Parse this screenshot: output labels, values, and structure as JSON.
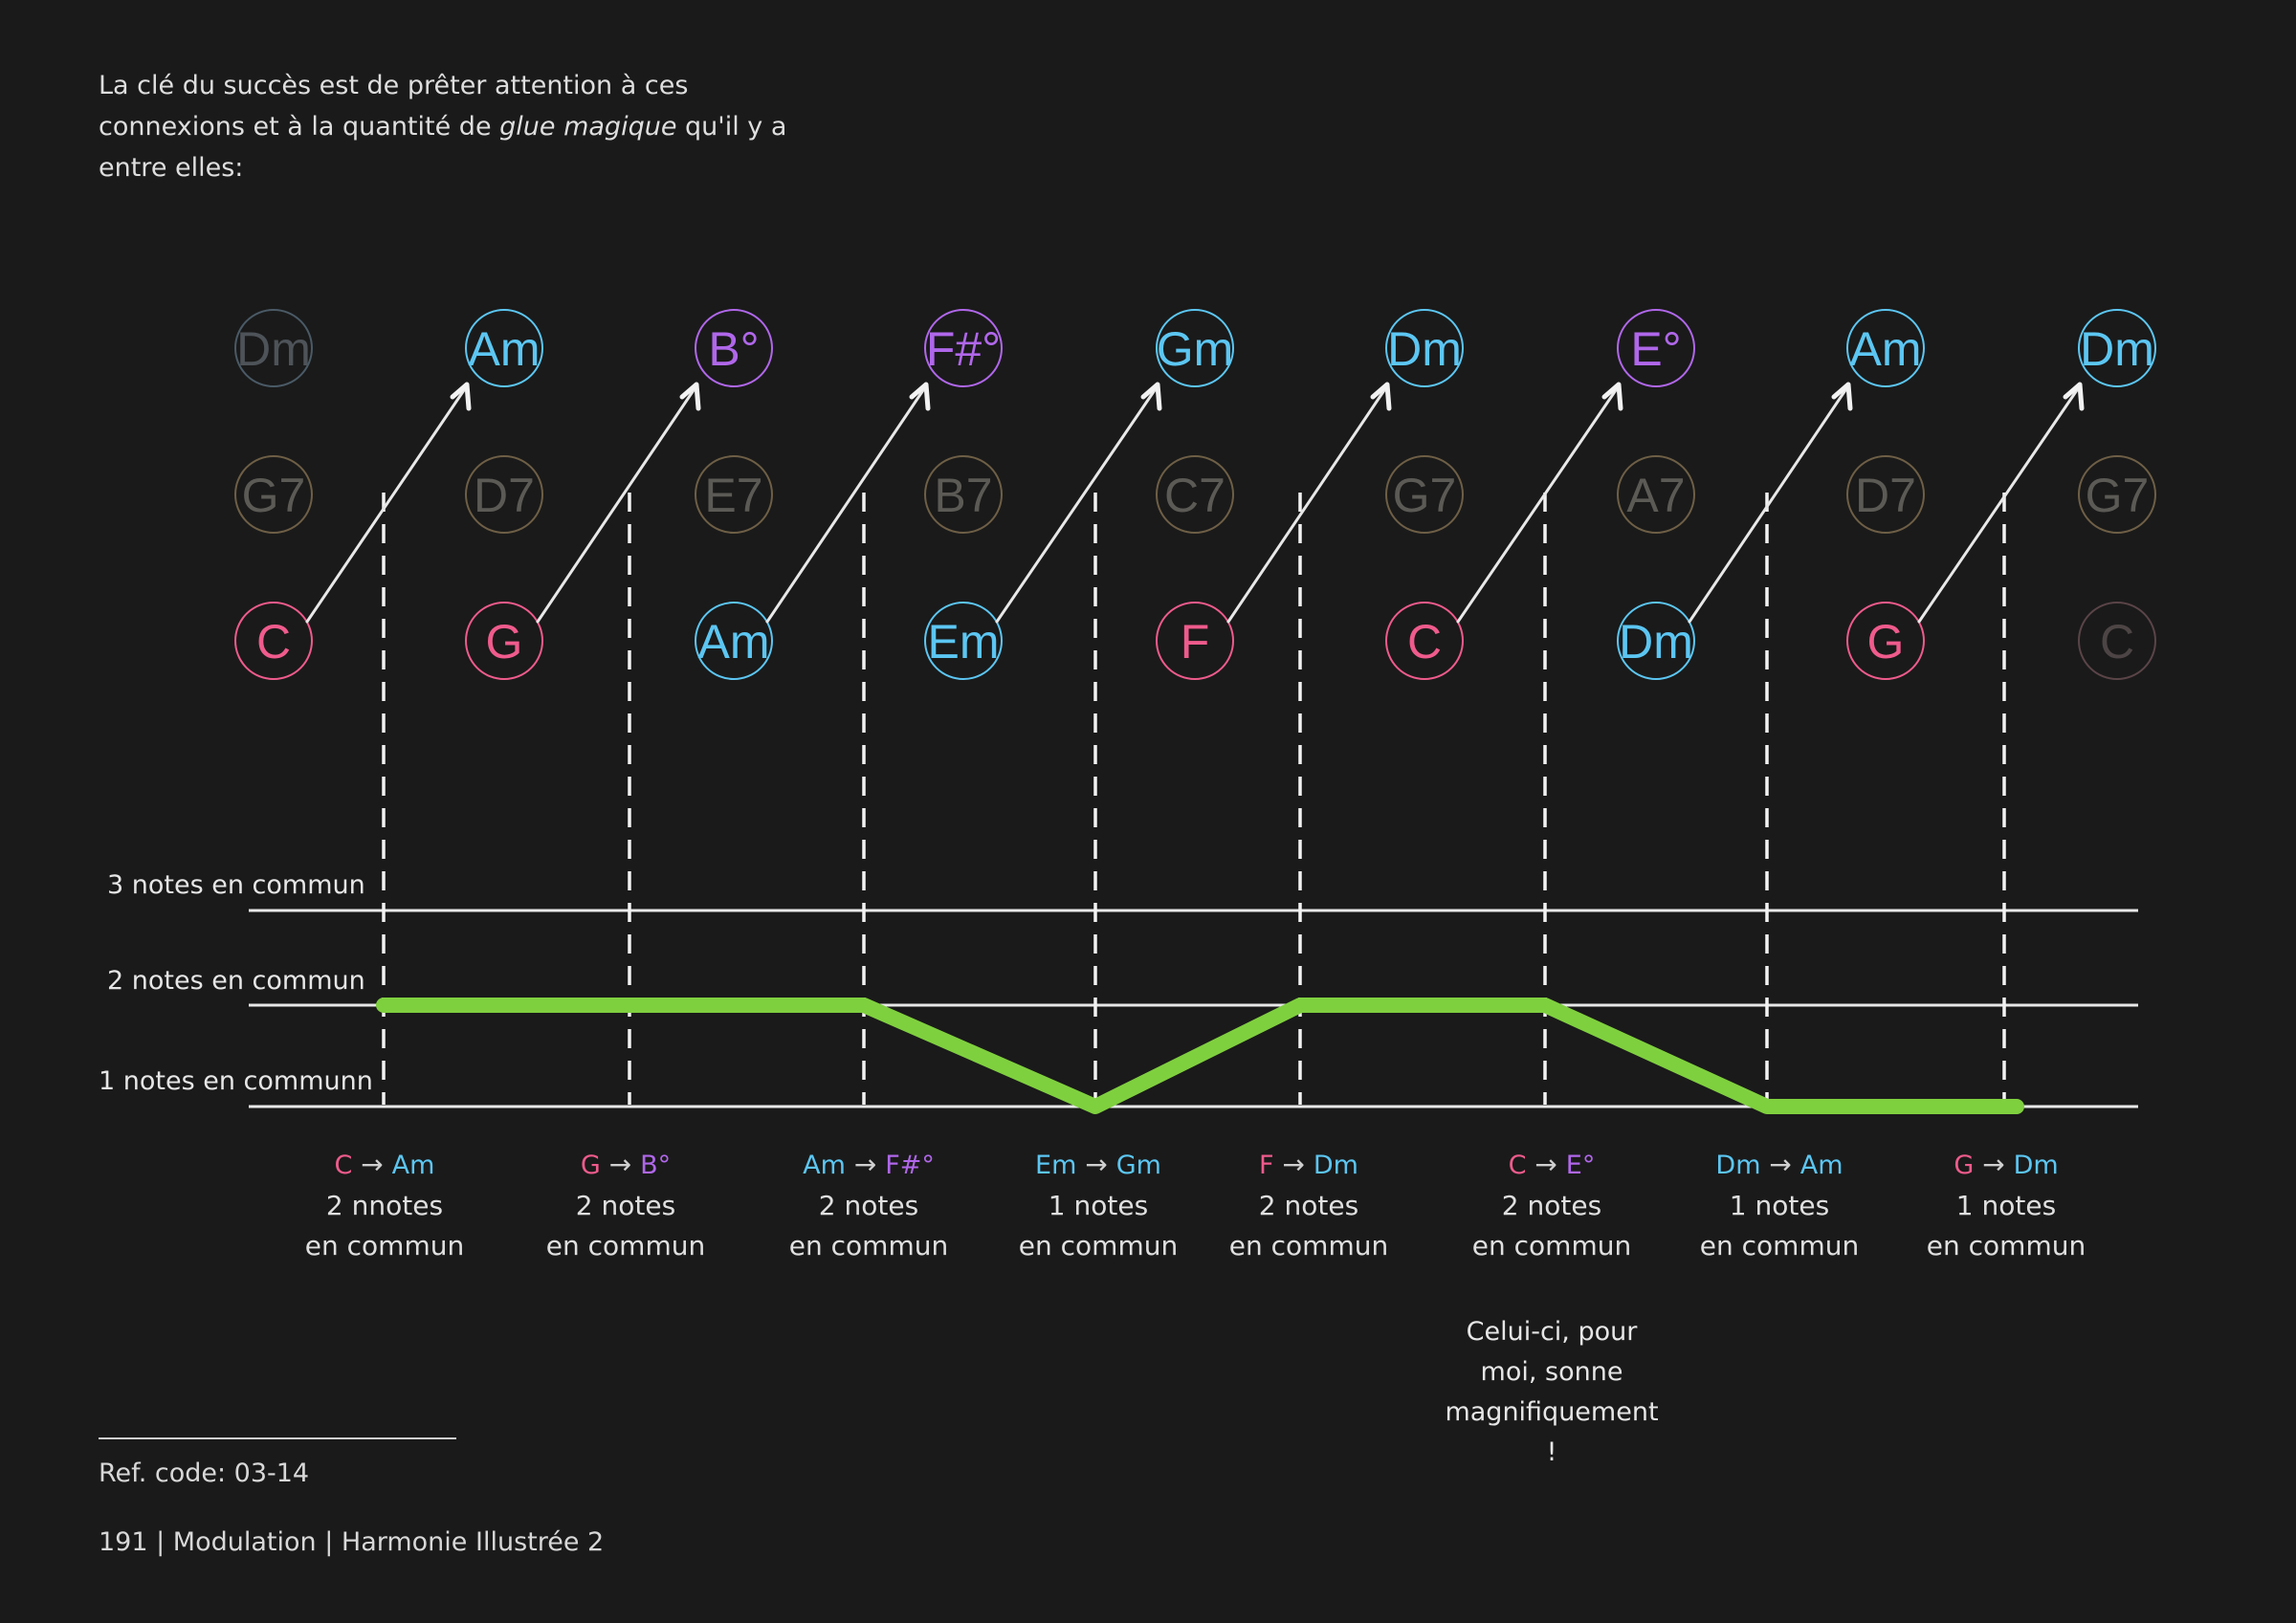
{
  "intro": {
    "part1": "La clé du succès est de prêter attention à ces connexions et à la quantité de ",
    "italic": "glue magique",
    "part2": " qu'il y a entre elles:"
  },
  "colors": {
    "background": "#1a1a1a",
    "pink": "#ef5b8c",
    "blue": "#5cc6f2",
    "purple": "#b067ea",
    "dim_top": "#4a5a66",
    "dim_mid": "#6e5f46",
    "dim_bottom": "#5a4448",
    "green": "#7fd03f",
    "line": "#e8e8e8"
  },
  "chord_grid": {
    "top": [
      {
        "label": "Dm",
        "color": "dim_top"
      },
      {
        "label": "Am",
        "color": "blue"
      },
      {
        "label": "B°",
        "color": "purple"
      },
      {
        "label": "F#°",
        "color": "purple"
      },
      {
        "label": "Gm",
        "color": "blue"
      },
      {
        "label": "Dm",
        "color": "blue"
      },
      {
        "label": "E°",
        "color": "purple"
      },
      {
        "label": "Am",
        "color": "blue"
      },
      {
        "label": "Dm",
        "color": "blue"
      }
    ],
    "middle": [
      {
        "label": "G7",
        "color": "dim_mid"
      },
      {
        "label": "D7",
        "color": "dim_mid"
      },
      {
        "label": "E7",
        "color": "dim_mid"
      },
      {
        "label": "B7",
        "color": "dim_mid"
      },
      {
        "label": "C7",
        "color": "dim_mid"
      },
      {
        "label": "G7",
        "color": "dim_mid"
      },
      {
        "label": "A7",
        "color": "dim_mid"
      },
      {
        "label": "D7",
        "color": "dim_mid"
      },
      {
        "label": "G7",
        "color": "dim_mid"
      }
    ],
    "bottom": [
      {
        "label": "C",
        "color": "pink"
      },
      {
        "label": "G",
        "color": "pink"
      },
      {
        "label": "Am",
        "color": "blue"
      },
      {
        "label": "Em",
        "color": "blue"
      },
      {
        "label": "F",
        "color": "pink"
      },
      {
        "label": "C",
        "color": "pink"
      },
      {
        "label": "Dm",
        "color": "blue"
      },
      {
        "label": "G",
        "color": "pink"
      },
      {
        "label": "C",
        "color": "dim_bottom"
      }
    ]
  },
  "levels": [
    "3 notes en commun",
    "2 notes en commun",
    "1 notes en communn"
  ],
  "transitions": [
    {
      "from": "C",
      "from_color": "pink",
      "to": "Am",
      "to_color": "blue",
      "common": 2,
      "line1": "2 nnotes",
      "line2": "en commun"
    },
    {
      "from": "G",
      "from_color": "pink",
      "to": "B°",
      "to_color": "purple",
      "common": 2,
      "line1": "2 notes",
      "line2": "en commun"
    },
    {
      "from": "Am",
      "from_color": "blue",
      "to": "F#°",
      "to_color": "purple",
      "common": 2,
      "line1": "2 notes",
      "line2": "en commun"
    },
    {
      "from": "Em",
      "from_color": "blue",
      "to": "Gm",
      "to_color": "blue",
      "common": 1,
      "line1": "1 notes",
      "line2": "en commun"
    },
    {
      "from": "F",
      "from_color": "pink",
      "to": "Dm",
      "to_color": "blue",
      "common": 2,
      "line1": "2 notes",
      "line2": "en commun"
    },
    {
      "from": "C",
      "from_color": "pink",
      "to": "E°",
      "to_color": "purple",
      "common": 2,
      "line1": "2 notes",
      "line2": "en commun"
    },
    {
      "from": "Dm",
      "from_color": "blue",
      "to": "Am",
      "to_color": "blue",
      "common": 1,
      "line1": "1 notes",
      "line2": "en commun"
    },
    {
      "from": "G",
      "from_color": "pink",
      "to": "Dm",
      "to_color": "blue",
      "common": 1,
      "line1": "1 notes",
      "line2": "en commun"
    }
  ],
  "arrow_symbol": "→",
  "note": "Celui-ci, pour moi, sonne magnifiquement !",
  "ref_code": "Ref. code:  03-14",
  "footer": "191 | Modulation | Harmonie Illustrée 2"
}
